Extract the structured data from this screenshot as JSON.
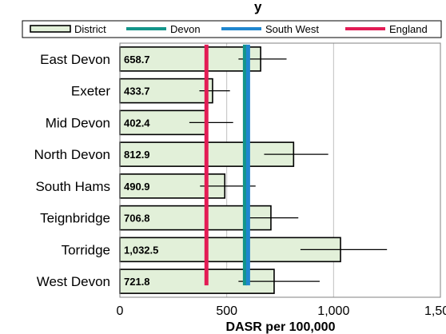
{
  "chart_data": {
    "type": "bar",
    "orientation": "horizontal",
    "title_fragment": "y",
    "categories": [
      "East Devon",
      "Exeter",
      "Mid Devon",
      "North Devon",
      "South Hams",
      "Teignbridge",
      "Torridge",
      "West Devon"
    ],
    "series": [
      {
        "name": "District",
        "values": [
          658.7,
          433.7,
          402.4,
          812.9,
          490.9,
          706.8,
          1032.5,
          721.8
        ],
        "value_labels": [
          "658.7",
          "433.7",
          "402.4",
          "812.9",
          "490.9",
          "706.8",
          "1,032.5",
          "721.8"
        ],
        "ci_lower": [
          555,
          372,
          325,
          675,
          375,
          580,
          845,
          555
        ],
        "ci_upper": [
          780,
          515,
          530,
          975,
          635,
          835,
          1250,
          935
        ],
        "color": "#e2f0d9"
      }
    ],
    "reference_lines": [
      {
        "name": "Devon",
        "value": 585,
        "color": "#13958a"
      },
      {
        "name": "South West",
        "value": 600,
        "color": "#1f86cf"
      },
      {
        "name": "England",
        "value": 405,
        "color": "#e31c55"
      }
    ],
    "xlabel": "DASR per 100,000",
    "xlim": [
      0,
      1500
    ],
    "xticks": [
      0,
      500,
      1000,
      1500
    ],
    "xtick_labels": [
      "0",
      "500",
      "1,000",
      "1,500"
    ],
    "grid": true,
    "legend_position": "top"
  }
}
